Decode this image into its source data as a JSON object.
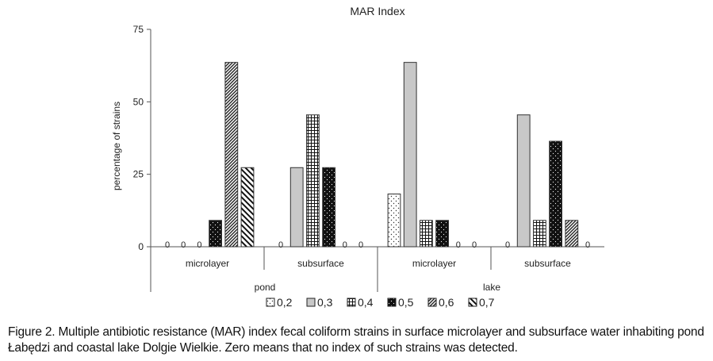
{
  "chart_data": {
    "type": "bar",
    "title": "MAR Index",
    "ylabel": "percentage of strains",
    "xlabel": "",
    "ylim": [
      0,
      75
    ],
    "yticks": [
      0,
      25,
      50,
      75
    ],
    "groups": [
      {
        "name": "pond",
        "subgroups": [
          "microlayer",
          "subsurface"
        ]
      },
      {
        "name": "lake",
        "subgroups": [
          "microlayer",
          "subsurface"
        ]
      }
    ],
    "categories": [
      "pond microlayer",
      "pond subsurface",
      "lake microlayer",
      "lake subsurface"
    ],
    "category_labels": [
      "microlayer",
      "subsurface",
      "microlayer",
      "subsurface"
    ],
    "series": [
      {
        "name": "0,2",
        "pattern": "dots-sparse",
        "values": [
          0,
          0,
          18.2,
          0
        ]
      },
      {
        "name": "0,3",
        "pattern": "light-gray",
        "values": [
          0,
          27.3,
          63.6,
          45.5
        ]
      },
      {
        "name": "0,4",
        "pattern": "grid",
        "values": [
          0,
          45.5,
          9.1,
          9.1
        ]
      },
      {
        "name": "0,5",
        "pattern": "black-dots",
        "values": [
          9.1,
          27.3,
          9.1,
          36.4
        ]
      },
      {
        "name": "0,6",
        "pattern": "diag-right-dense",
        "values": [
          63.6,
          0,
          0,
          9.1
        ]
      },
      {
        "name": "0,7",
        "pattern": "diag-left",
        "values": [
          27.3,
          0,
          0,
          0
        ]
      }
    ],
    "zero_label": "0",
    "legend_position": "bottom"
  },
  "caption": "Figure 2. Multiple antibiotic resistance (MAR) index fecal coliform strains in surface microlayer and subsurface water inhabiting pond Łabędzi and coastal lake Dolgie Wielkie. Zero means that no index of such strains was detected."
}
